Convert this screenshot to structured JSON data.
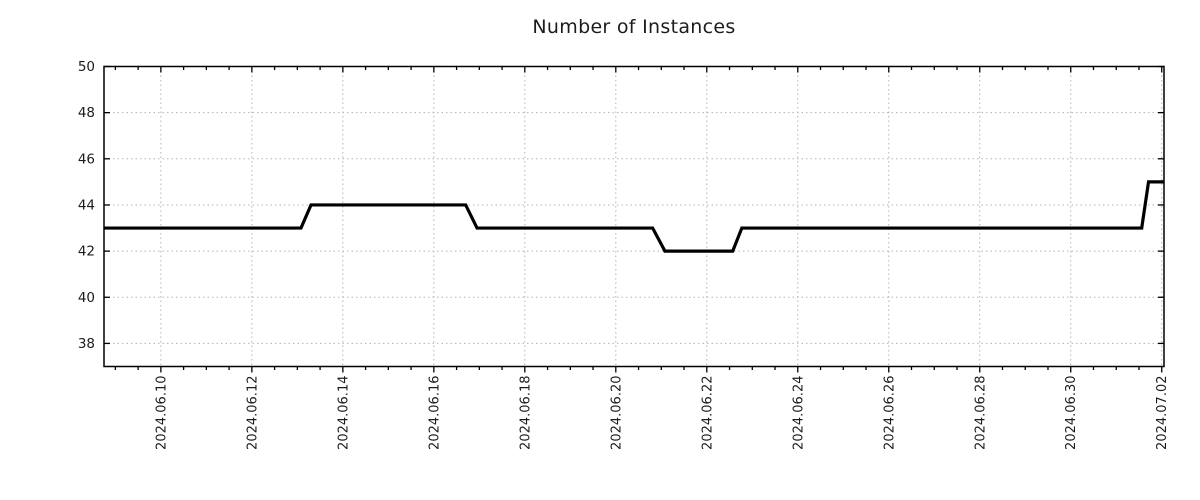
{
  "chart_data": {
    "type": "line",
    "subtype": "step-line-timeseries",
    "title": "Number of Instances",
    "legend": "none",
    "grid": "dotted",
    "colors": {
      "line": "#000000",
      "grid": "#b3b3b3",
      "axis": "#000000",
      "text": "#1c1c1c",
      "background": "#ffffff"
    },
    "x_axis": {
      "label": "",
      "tick_labels": [
        "2024.06.10",
        "2024.06.12",
        "2024.06.14",
        "2024.06.16",
        "2024.06.18",
        "2024.06.20",
        "2024.06.22",
        "2024.06.24",
        "2024.06.26",
        "2024.06.28",
        "2024.06.30",
        "2024.07.02"
      ],
      "tick_days": [
        0,
        2,
        4,
        6,
        8,
        10,
        12,
        14,
        16,
        18,
        20,
        22
      ],
      "minor_tick_interval_days": 0.5,
      "range_days": [
        -1.25,
        22.05
      ],
      "tick_label_rotation_deg": 90
    },
    "y_axis": {
      "label": "",
      "ticks": [
        38,
        40,
        42,
        44,
        46,
        48,
        50
      ],
      "range": [
        37.0,
        50
      ]
    },
    "series": [
      {
        "name": "instances",
        "points": [
          {
            "day": -1.25,
            "date": "2024-06-08 18:00",
            "value": 43
          },
          {
            "day": 3.08,
            "date": "2024-06-13 02:00",
            "value": 43
          },
          {
            "day": 3.3,
            "date": "2024-06-13 07:00",
            "value": 44
          },
          {
            "day": 6.7,
            "date": "2024-06-16 17:00",
            "value": 44
          },
          {
            "day": 6.95,
            "date": "2024-06-16 23:00",
            "value": 43
          },
          {
            "day": 10.81,
            "date": "2024-06-20 19:30",
            "value": 43
          },
          {
            "day": 11.08,
            "date": "2024-06-21 02:00",
            "value": 42
          },
          {
            "day": 12.57,
            "date": "2024-06-22 13:40",
            "value": 42
          },
          {
            "day": 12.77,
            "date": "2024-06-22 18:30",
            "value": 43
          },
          {
            "day": 21.56,
            "date": "2024-07-01 13:30",
            "value": 43
          },
          {
            "day": 21.71,
            "date": "2024-07-01 17:00",
            "value": 45
          },
          {
            "day": 22.05,
            "date": "2024-07-02 01:00",
            "value": 45
          }
        ]
      }
    ]
  }
}
